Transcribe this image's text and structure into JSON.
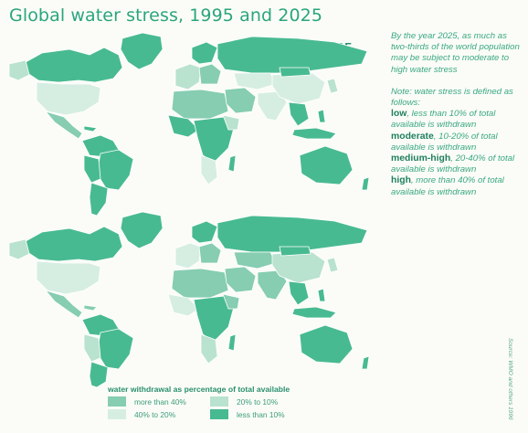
{
  "title": "Global water stress, 1995 and 2025",
  "maps": [
    {
      "year": "1995"
    },
    {
      "year": "2025"
    }
  ],
  "notes": {
    "intro": "By the year 2025, as much as two-thirds of the world population may be subject to moderate to high water stress",
    "definition_lead": "Note: water stress is defined as follows:",
    "levels": [
      {
        "term": "low",
        "desc": ", less than 10% of total available is withdrawn"
      },
      {
        "term": "moderate",
        "desc": ", 10-20% of total available is withdrawn"
      },
      {
        "term": "medium-high",
        "desc": ", 20-40% of total available is withdrawn"
      },
      {
        "term": "high",
        "desc": ", more than 40% of total available is withdrawn"
      }
    ]
  },
  "legend": {
    "title": "water withdrawal as percentage of total available",
    "items": [
      {
        "label": "more than 40%",
        "color": "#86cdb1"
      },
      {
        "label": "20% to 10%",
        "color": "#b9e2cf"
      },
      {
        "label": "40% to 20%",
        "color": "#d6eee2"
      },
      {
        "label": "less than 10%",
        "color": "#48ba92"
      }
    ]
  },
  "source": "Source: WMO and others 1996",
  "colors": {
    "low": "#48ba92",
    "moderate": "#b9e2cf",
    "medium_high": "#d6eee2",
    "high": "#86cdb1",
    "borders": "#ffffff",
    "title": "#2aa57e"
  }
}
